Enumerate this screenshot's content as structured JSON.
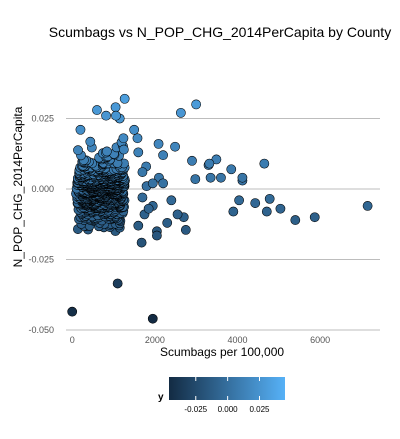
{
  "chart_data": {
    "type": "scatter",
    "title": "Scumbags vs  N_POP_CHG_2014PerCapita by County",
    "xlabel": "Scumbags per 100,000",
    "ylabel": "N_POP_CHG_2014PerCapita",
    "xlim": [
      -150,
      7450
    ],
    "ylim": [
      -0.05,
      0.05
    ],
    "x_ticks": [
      0,
      2000,
      4000,
      6000
    ],
    "x_tick_labels": [
      "0",
      "2000",
      "4000",
      "6000"
    ],
    "y_ticks": [
      -0.05,
      -0.025,
      0,
      0.025
    ],
    "y_tick_labels": [
      "-0.050",
      "-0.025",
      "0.000",
      "0.025"
    ],
    "grid": "horizontal-major",
    "color_scale": {
      "variable": "y",
      "low_color": "#132B43",
      "high_color": "#56B1F7",
      "domain": [
        -0.046,
        0.045
      ],
      "ticks": [
        -0.025,
        0,
        0.025
      ],
      "tick_labels": [
        "-0.025",
        "0.000",
        "0.025"
      ],
      "legend_position": "bottom"
    },
    "x": [
      200,
      1150,
      1050,
      600,
      820,
      1060,
      1270,
      1580,
      1240,
      1500,
      1250,
      1600,
      1790,
      2200,
      2090,
      2490,
      3000,
      2630,
      2900,
      2980,
      3350,
      3490,
      3300,
      3600,
      3320,
      3850,
      4040,
      3900,
      4120,
      4120,
      4650,
      4430,
      4780,
      4710,
      5040,
      5400,
      5870,
      7150,
      2100,
      2200,
      2400,
      1950,
      2700,
      2550,
      2300,
      2050,
      1600,
      1750,
      1850,
      1700,
      1800,
      1950,
      1700,
      2750,
      2050,
      1680,
      1100,
      0,
      1950
    ],
    "y": [
      0.021,
      0.025,
      0.029,
      0.028,
      0.026,
      0.026,
      0.032,
      0.018,
      0.018,
      0.021,
      0.014,
      0.013,
      0.008,
      0.012,
      0.016,
      0.015,
      0.03,
      0.027,
      0.01,
      0.0035,
      0.004,
      0.0105,
      0.0085,
      0.004,
      0.009,
      0.007,
      -0.004,
      -0.008,
      0.003,
      0.004,
      0.009,
      -0.005,
      -0.0035,
      -0.008,
      -0.007,
      -0.011,
      -0.01,
      -0.006,
      0.004,
      0.002,
      -0.004,
      -0.006,
      -0.01,
      -0.009,
      -0.012,
      -0.015,
      -0.013,
      -0.009,
      -0.007,
      -0.003,
      0.001,
      0.002,
      0.006,
      -0.0145,
      -0.0165,
      -0.019,
      -0.0335,
      -0.0435,
      -0.046
    ],
    "dense_cluster": {
      "description": "",
      "x_range": [
        0,
        1300
      ],
      "y_range": [
        -0.024,
        0.024
      ]
    }
  }
}
